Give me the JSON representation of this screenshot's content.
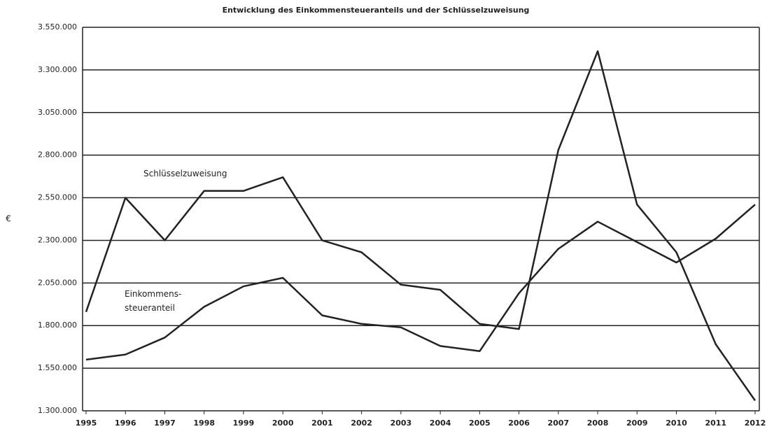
{
  "chart_data": {
    "type": "line",
    "title": "Entwicklung des Einkommensteueranteils und der Schlüsselzuweisung",
    "y_label": "€",
    "categories": [
      "1995",
      "1996",
      "1997",
      "1998",
      "1999",
      "2000",
      "2001",
      "2002",
      "2003",
      "2004",
      "2005",
      "2006",
      "2007",
      "2008",
      "2009",
      "2010",
      "2011",
      "2012"
    ],
    "series": [
      {
        "label": [
          "Schlüsselzuweisung"
        ],
        "color": "#222222",
        "values": [
          1880000,
          2550000,
          2300000,
          2590000,
          2590000,
          2670000,
          2300000,
          2230000,
          2040000,
          2010000,
          1810000,
          1780000,
          2830000,
          3410000,
          2510000,
          2230000,
          1690000,
          1360000
        ]
      },
      {
        "label": [
          "Einkommens-",
          "steueranteil"
        ],
        "color": "#222222",
        "values": [
          1600000,
          1630000,
          1730000,
          1910000,
          2030000,
          2080000,
          1860000,
          1810000,
          1790000,
          1680000,
          1650000,
          1990000,
          2250000,
          2410000,
          2290000,
          2170000,
          2310000,
          2510000
        ]
      }
    ],
    "ylim": [
      1300000,
      3550000
    ],
    "yticks": [
      {
        "value": 1300000,
        "label": "1.300.000"
      },
      {
        "value": 1550000,
        "label": "1.550.000"
      },
      {
        "value": 1800000,
        "label": "1.800.000"
      },
      {
        "value": 2050000,
        "label": "2.050.000"
      },
      {
        "value": 2300000,
        "label": "2.300.000"
      },
      {
        "value": 2550000,
        "label": "2.550.000"
      },
      {
        "value": 2800000,
        "label": "2.800.000"
      },
      {
        "value": 3050000,
        "label": "3.050.000"
      },
      {
        "value": 3300000,
        "label": "3.300.000"
      },
      {
        "value": 3550000,
        "label": "3.550.000"
      }
    ],
    "grid": true
  }
}
